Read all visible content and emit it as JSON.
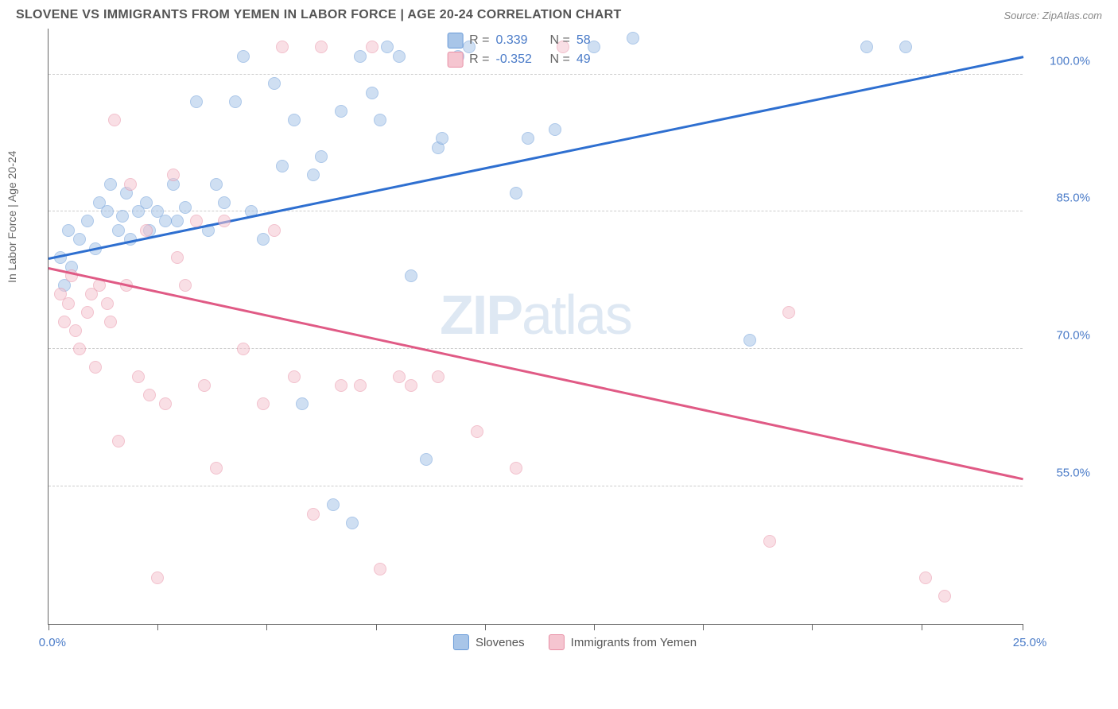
{
  "header": {
    "title": "SLOVENE VS IMMIGRANTS FROM YEMEN IN LABOR FORCE | AGE 20-24 CORRELATION CHART",
    "source": "Source: ZipAtlas.com"
  },
  "chart": {
    "type": "scatter",
    "ylabel": "In Labor Force | Age 20-24",
    "watermark": "ZIPatlas",
    "background_color": "#ffffff",
    "grid_color": "#cccccc",
    "axis_color": "#666666",
    "xlim": [
      0,
      25
    ],
    "ylim": [
      40,
      105
    ],
    "x_ticks": [
      0,
      2.8,
      5.6,
      8.4,
      11.2,
      14,
      16.8,
      19.6,
      22.4,
      25
    ],
    "x_tick_labels": {
      "0": "0.0%",
      "25": "25.0%"
    },
    "y_gridlines": [
      55,
      70,
      85,
      100
    ],
    "y_tick_labels": {
      "55": "55.0%",
      "70": "70.0%",
      "85": "85.0%",
      "100": "100.0%"
    },
    "tick_label_color": "#4a7bc8",
    "tick_label_fontsize": 15,
    "point_radius": 8,
    "point_opacity": 0.55,
    "series": [
      {
        "name": "Slovenes",
        "color_fill": "#a8c5e8",
        "color_border": "#6a9bd8",
        "trend_color": "#2e6fd0",
        "r": "0.339",
        "n": "58",
        "trend": {
          "x1": 0,
          "y1": 80,
          "x2": 25,
          "y2": 102
        },
        "points": [
          [
            0.3,
            80
          ],
          [
            0.4,
            77
          ],
          [
            0.5,
            83
          ],
          [
            0.6,
            79
          ],
          [
            0.8,
            82
          ],
          [
            1.0,
            84
          ],
          [
            1.2,
            81
          ],
          [
            1.3,
            86
          ],
          [
            1.5,
            85
          ],
          [
            1.6,
            88
          ],
          [
            1.8,
            83
          ],
          [
            1.9,
            84.5
          ],
          [
            2.0,
            87
          ],
          [
            2.1,
            82
          ],
          [
            2.3,
            85
          ],
          [
            2.5,
            86
          ],
          [
            2.6,
            83
          ],
          [
            2.8,
            85
          ],
          [
            3.0,
            84
          ],
          [
            3.2,
            88
          ],
          [
            3.3,
            84
          ],
          [
            3.5,
            85.5
          ],
          [
            3.8,
            97
          ],
          [
            4.1,
            83
          ],
          [
            4.3,
            88
          ],
          [
            4.5,
            86
          ],
          [
            4.8,
            97
          ],
          [
            5.0,
            102
          ],
          [
            5.2,
            85
          ],
          [
            5.5,
            82
          ],
          [
            5.8,
            99
          ],
          [
            6.0,
            90
          ],
          [
            6.3,
            95
          ],
          [
            6.5,
            64
          ],
          [
            6.8,
            89
          ],
          [
            7.0,
            91
          ],
          [
            7.3,
            53
          ],
          [
            7.5,
            96
          ],
          [
            7.8,
            51
          ],
          [
            8.0,
            102
          ],
          [
            8.3,
            98
          ],
          [
            8.5,
            95
          ],
          [
            8.7,
            103
          ],
          [
            9.0,
            102
          ],
          [
            9.3,
            78
          ],
          [
            9.7,
            58
          ],
          [
            10.0,
            92
          ],
          [
            10.1,
            93
          ],
          [
            10.5,
            102
          ],
          [
            10.8,
            103
          ],
          [
            12.0,
            87
          ],
          [
            12.3,
            93
          ],
          [
            13.0,
            94
          ],
          [
            14.0,
            103
          ],
          [
            15.0,
            104
          ],
          [
            18.0,
            71
          ],
          [
            21.0,
            103
          ],
          [
            22.0,
            103
          ]
        ]
      },
      {
        "name": "Immigrants from Yemen",
        "color_fill": "#f5c5d0",
        "color_border": "#e88fa5",
        "trend_color": "#e05a85",
        "r": "-0.352",
        "n": "49",
        "trend": {
          "x1": 0,
          "y1": 79,
          "x2": 25,
          "y2": 56
        },
        "points": [
          [
            0.3,
            76
          ],
          [
            0.4,
            73
          ],
          [
            0.5,
            75
          ],
          [
            0.6,
            78
          ],
          [
            0.7,
            72
          ],
          [
            0.8,
            70
          ],
          [
            1.0,
            74
          ],
          [
            1.1,
            76
          ],
          [
            1.2,
            68
          ],
          [
            1.3,
            77
          ],
          [
            1.5,
            75
          ],
          [
            1.6,
            73
          ],
          [
            1.7,
            95
          ],
          [
            1.8,
            60
          ],
          [
            2.0,
            77
          ],
          [
            2.1,
            88
          ],
          [
            2.3,
            67
          ],
          [
            2.5,
            83
          ],
          [
            2.6,
            65
          ],
          [
            2.8,
            45
          ],
          [
            3.0,
            64
          ],
          [
            3.2,
            89
          ],
          [
            3.3,
            80
          ],
          [
            3.5,
            77
          ],
          [
            3.8,
            84
          ],
          [
            4.0,
            66
          ],
          [
            4.3,
            57
          ],
          [
            4.5,
            84
          ],
          [
            5.0,
            70
          ],
          [
            5.5,
            64
          ],
          [
            5.8,
            83
          ],
          [
            6.0,
            103
          ],
          [
            6.3,
            67
          ],
          [
            6.8,
            52
          ],
          [
            7.0,
            103
          ],
          [
            7.5,
            66
          ],
          [
            8.0,
            66
          ],
          [
            8.3,
            103
          ],
          [
            8.5,
            46
          ],
          [
            9.0,
            67
          ],
          [
            9.3,
            66
          ],
          [
            10.0,
            67
          ],
          [
            11.0,
            61
          ],
          [
            12.0,
            57
          ],
          [
            13.2,
            103
          ],
          [
            18.5,
            49
          ],
          [
            19.0,
            74
          ],
          [
            22.5,
            45
          ],
          [
            23.0,
            43
          ]
        ]
      }
    ],
    "legend_bottom": [
      {
        "label": "Slovenes",
        "swatch_fill": "#a8c5e8",
        "swatch_border": "#6a9bd8"
      },
      {
        "label": "Immigrants from Yemen",
        "swatch_fill": "#f5c5d0",
        "swatch_border": "#e88fa5"
      }
    ],
    "legend_top_labels": {
      "r": "R =",
      "n": "N ="
    }
  }
}
